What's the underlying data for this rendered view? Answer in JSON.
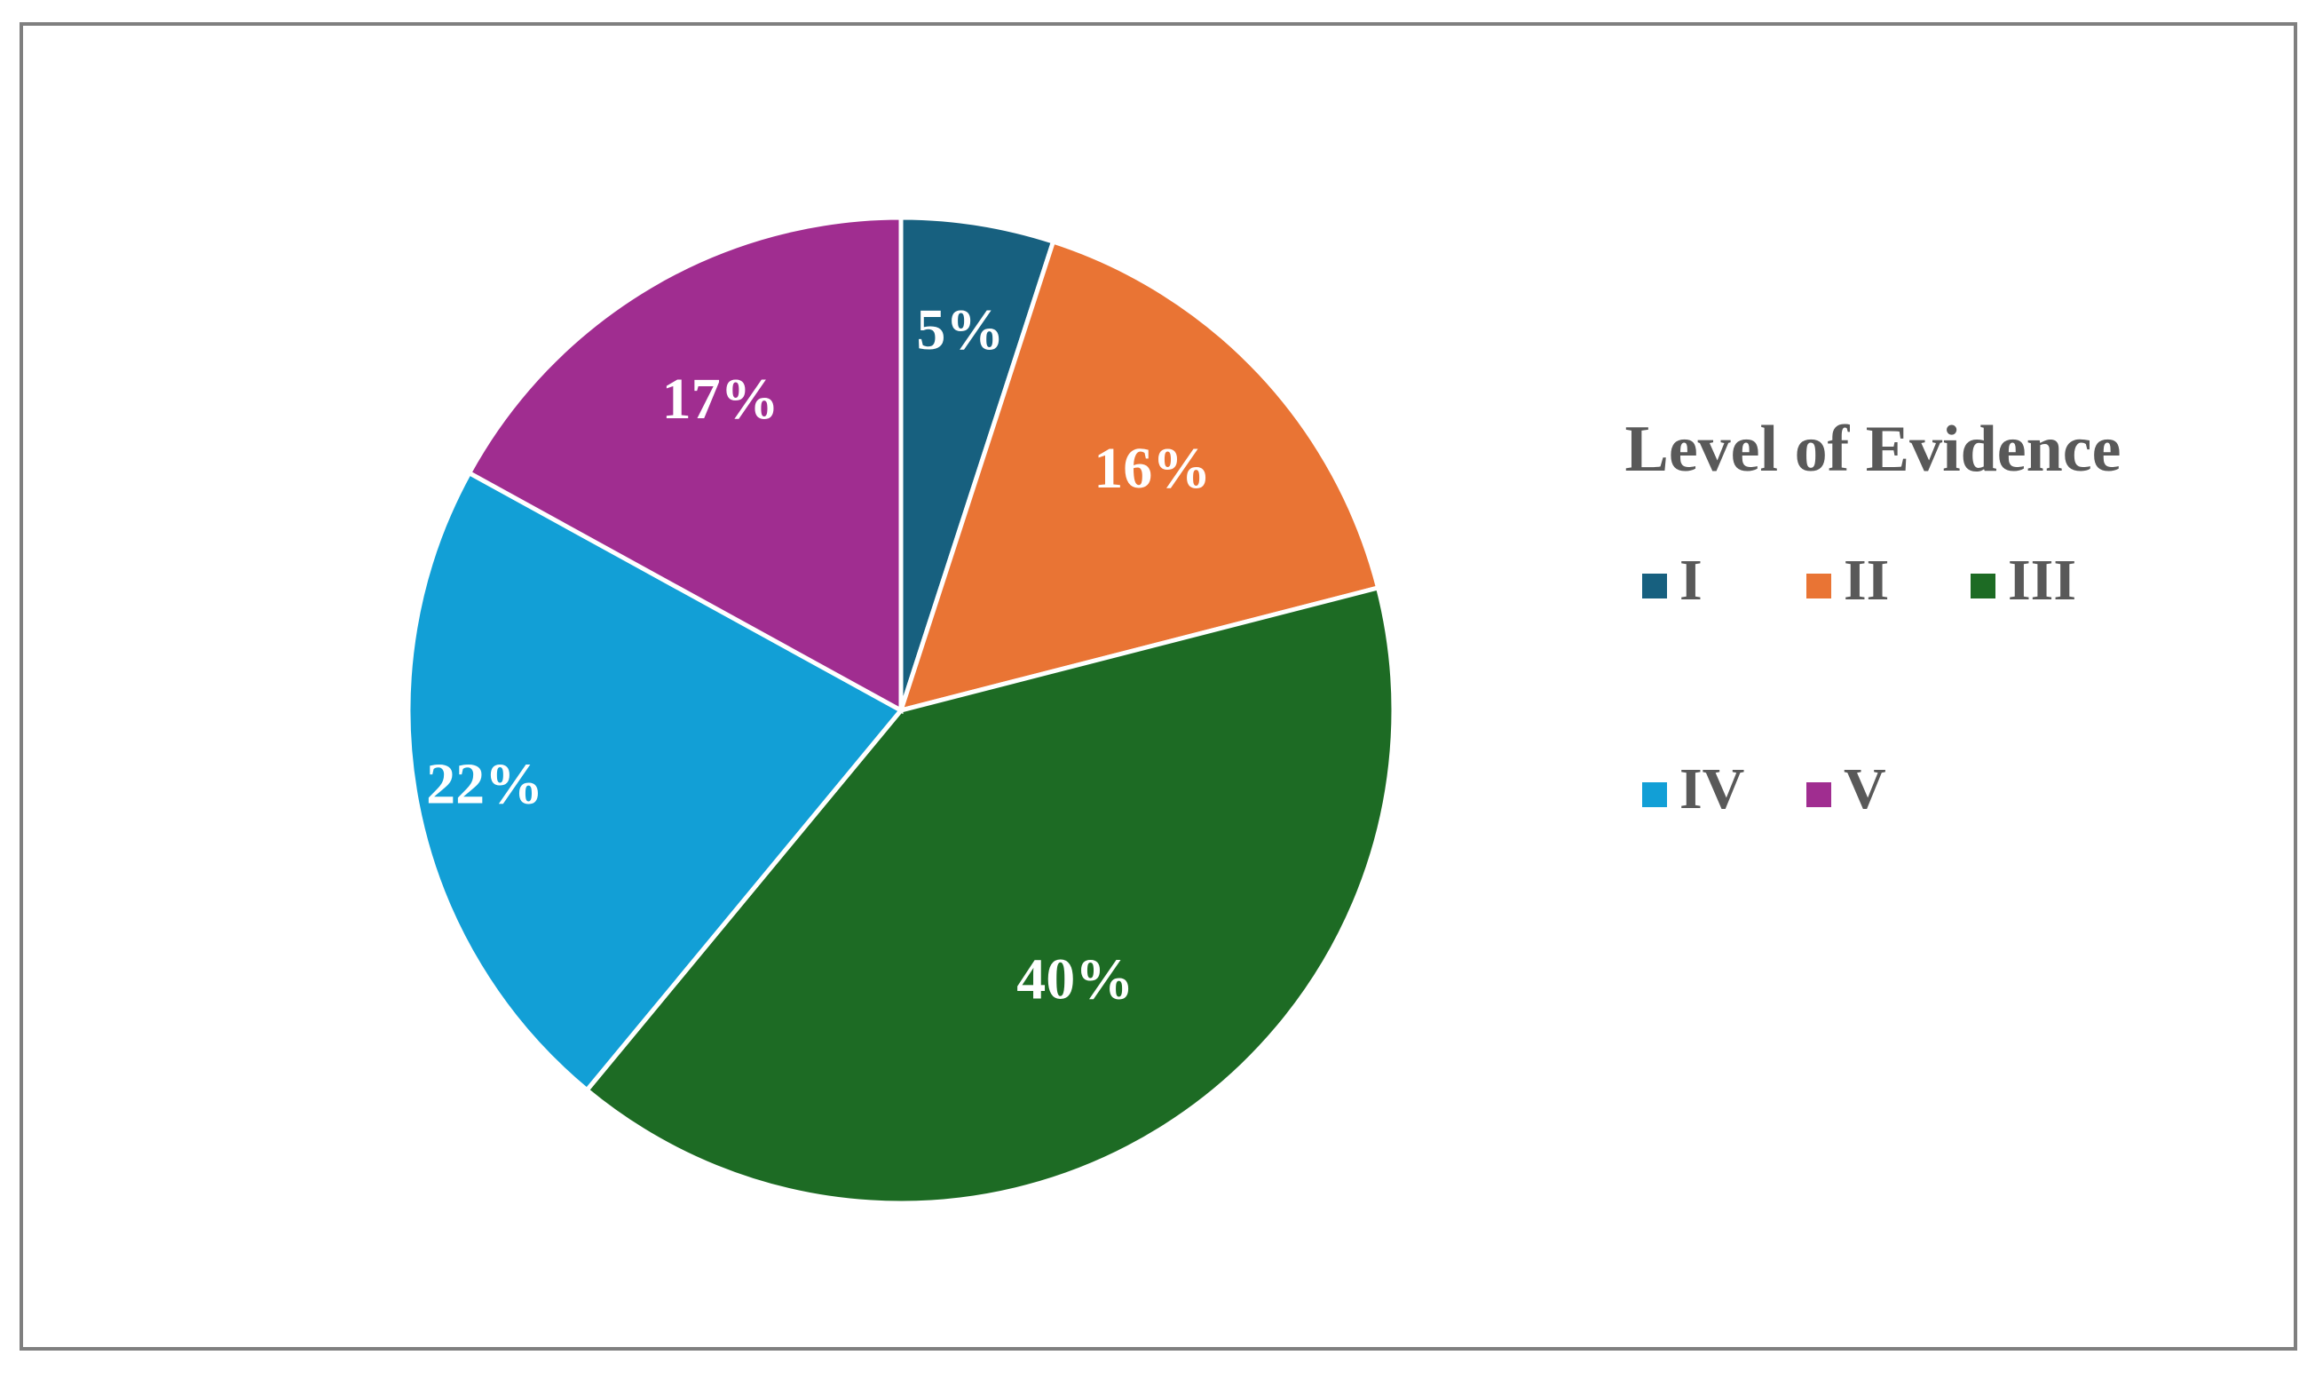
{
  "chart_data": {
    "type": "pie",
    "legend_title": "Level of Evidence",
    "legend_position": "right",
    "slices": [
      {
        "label": "I",
        "value": 5,
        "display": "5%",
        "color": "#17607f"
      },
      {
        "label": "II",
        "value": 16,
        "display": "16%",
        "color": "#e97434"
      },
      {
        "label": "III",
        "value": 40,
        "display": "40%",
        "color": "#1d6b24"
      },
      {
        "label": "IV",
        "value": 22,
        "display": "22%",
        "color": "#129fd6"
      },
      {
        "label": "V",
        "value": 17,
        "display": "17%",
        "color": "#a02d90"
      }
    ]
  }
}
